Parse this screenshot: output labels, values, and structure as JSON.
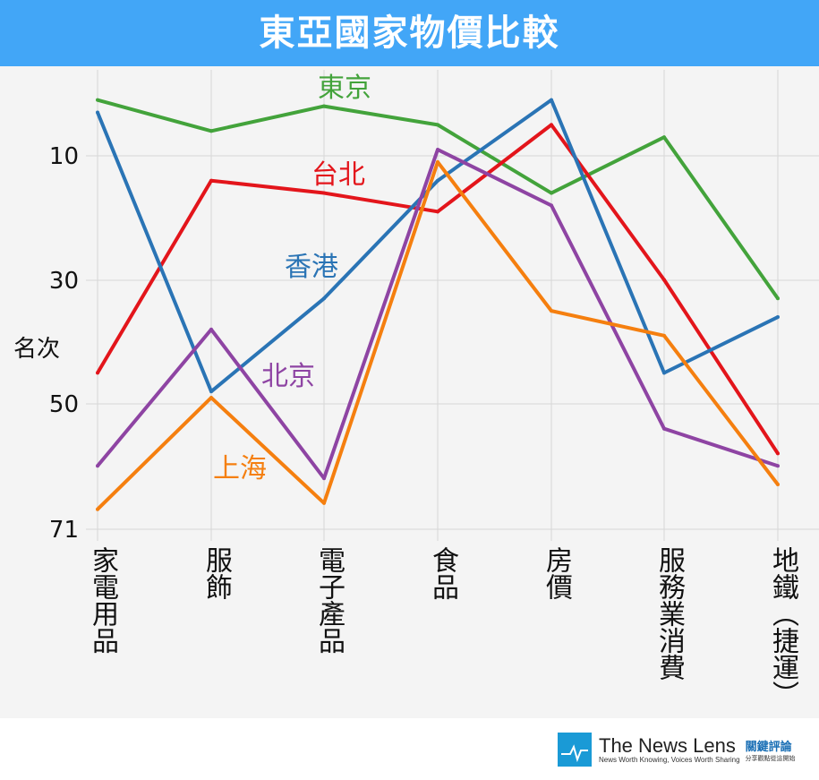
{
  "chart_data": {
    "type": "line",
    "title": "東亞國家物價比較",
    "ylabel": "名次",
    "xlabel": "",
    "y_inverted": true,
    "ylim": [
      71,
      1
    ],
    "yticks": [
      10,
      30,
      50,
      71
    ],
    "grid": true,
    "categories": [
      "家電用品",
      "服飾",
      "電子產品",
      "食品",
      "房價",
      "服務業消費",
      "地鐵（捷運）"
    ],
    "series": [
      {
        "name": "東京",
        "color": "#43a33b",
        "values": [
          1,
          6,
          2,
          5,
          16,
          7,
          33
        ]
      },
      {
        "name": "台北",
        "color": "#e3151b",
        "values": [
          45,
          14,
          16,
          19,
          5,
          30,
          58
        ]
      },
      {
        "name": "香港",
        "color": "#2a74b5",
        "values": [
          3,
          48,
          33,
          14,
          1,
          45,
          36
        ]
      },
      {
        "name": "北京",
        "color": "#8e44a3",
        "values": [
          60,
          38,
          62,
          9,
          18,
          54,
          60
        ]
      },
      {
        "name": "上海",
        "color": "#f57f0f",
        "values": [
          67,
          49,
          66,
          11,
          35,
          39,
          63
        ]
      }
    ]
  },
  "footer": {
    "brand": "The News Lens",
    "tagline": "News Worth Knowing, Voices Worth Sharing",
    "brand_cn": "關鍵評論",
    "tagline_cn": "分享觀點從這開始"
  }
}
